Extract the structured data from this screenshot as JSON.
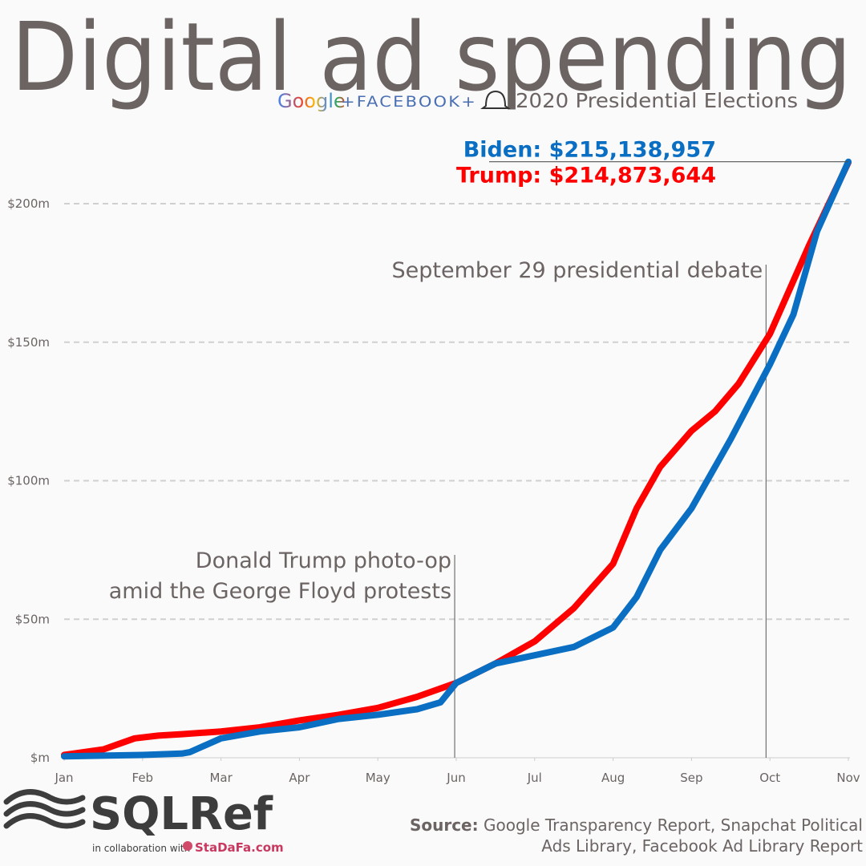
{
  "chart_data": {
    "type": "line",
    "title": "Digital ad spending",
    "logos": [
      "Google",
      "+FACEBOOK+"
    ],
    "subtitle": "2020 Presidential Elections",
    "xlim": [
      0,
      10
    ],
    "xticks": [
      {
        "value": 0,
        "label": "Jan"
      },
      {
        "value": 1,
        "label": "Feb"
      },
      {
        "value": 2,
        "label": "Mar"
      },
      {
        "value": 3,
        "label": "Apr"
      },
      {
        "value": 4,
        "label": "May"
      },
      {
        "value": 5,
        "label": "Jun"
      },
      {
        "value": 6,
        "label": "Jul"
      },
      {
        "value": 7,
        "label": "Aug"
      },
      {
        "value": 8,
        "label": "Sep"
      },
      {
        "value": 9,
        "label": "Oct"
      },
      {
        "value": 10,
        "label": "Nov"
      }
    ],
    "ylim": [
      0,
      200
    ],
    "yticks": [
      {
        "value": 0,
        "label": "$m"
      },
      {
        "value": 50,
        "label": "$50m"
      },
      {
        "value": 100,
        "label": "$100m"
      },
      {
        "value": 150,
        "label": "$150m"
      },
      {
        "value": 200,
        "label": "$200m"
      }
    ],
    "grid": true,
    "series": [
      {
        "name": "Trump",
        "color": "#ff0000",
        "end_label": "Trump: $214,873,644",
        "x": [
          0,
          0.5,
          0.7,
          0.9,
          1.2,
          1.5,
          2,
          2.5,
          3,
          3.5,
          4,
          4.5,
          5,
          5.5,
          6,
          6.5,
          7,
          7.3,
          7.6,
          8,
          8.3,
          8.6,
          9,
          9.5,
          10
        ],
        "values": [
          1,
          3,
          5,
          7,
          8,
          8.5,
          9.5,
          11,
          13.5,
          15.5,
          18,
          22,
          27,
          34,
          42,
          54,
          70,
          90,
          105,
          118,
          125,
          135,
          153,
          185,
          214.873644
        ]
      },
      {
        "name": "Biden",
        "color": "#0a6fc2",
        "end_label": "Biden: $215,138,957",
        "x": [
          0,
          1,
          1.5,
          1.6,
          2,
          2.5,
          3,
          3.5,
          4,
          4.5,
          4.8,
          5,
          5.5,
          6,
          6.5,
          7,
          7.3,
          7.6,
          8,
          8.5,
          9,
          9.3,
          9.6,
          10
        ],
        "values": [
          0.5,
          1,
          1.5,
          2,
          7,
          9.5,
          11,
          14,
          15.5,
          17.5,
          20,
          27,
          34,
          37,
          40,
          47,
          58,
          75,
          90,
          115,
          142,
          160,
          190,
          215.138957
        ]
      }
    ],
    "annotations": [
      {
        "x": 8.95,
        "lines": [
          "September 29 presidential debate"
        ]
      },
      {
        "x": 4.98,
        "lines": [
          "Donald Trump photo-op",
          "amid the George Floyd protests"
        ]
      }
    ],
    "brand": {
      "name": "SQLRef",
      "collab": "in collaboration with",
      "partner": "StaDaFa.com"
    },
    "source": {
      "label": "Source:",
      "lines": [
        " Google Transparency Report, Snapchat Political",
        "Ads Library, Facebook Ad Library Report"
      ]
    }
  }
}
